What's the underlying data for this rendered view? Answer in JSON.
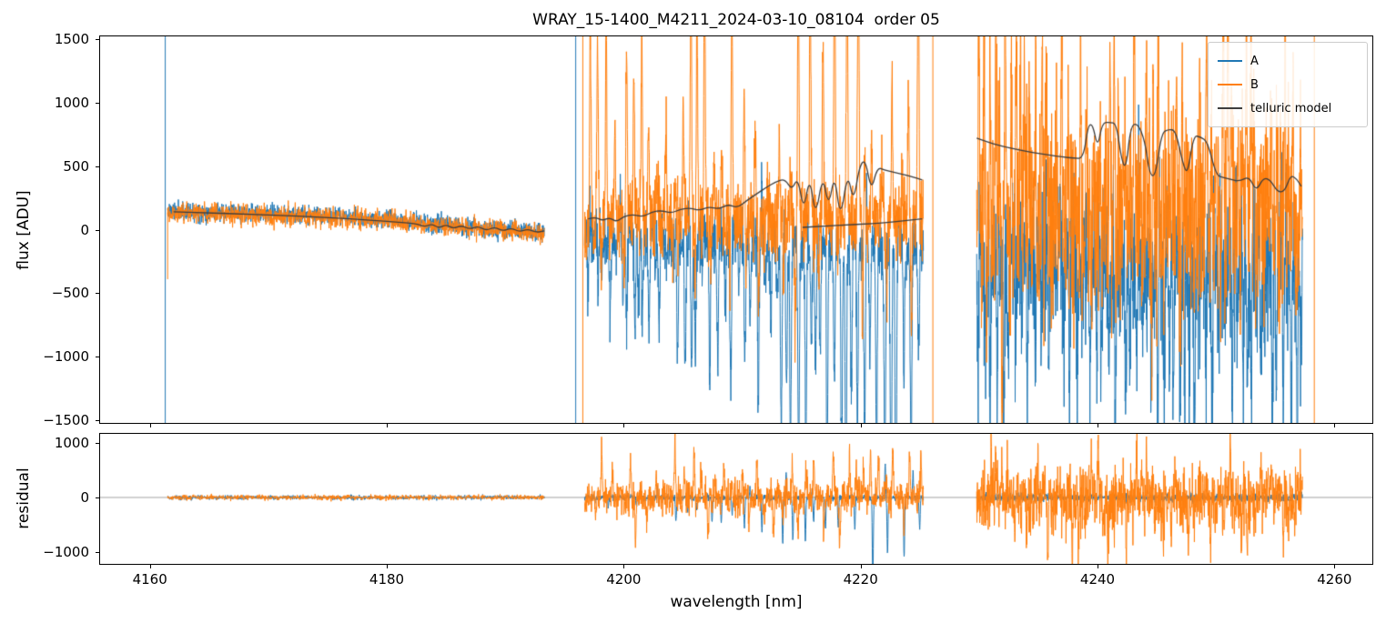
{
  "chart_data": {
    "type": "line",
    "title": "WRAY_15-1400_M4211_2024-03-10_08104  order 05",
    "xlabel": "wavelength [nm]",
    "xlim": [
      4155.8,
      4263.2
    ],
    "xticks": [
      {
        "v": 4160,
        "label": "4160"
      },
      {
        "v": 4180,
        "label": "4180"
      },
      {
        "v": 4200,
        "label": "4200"
      },
      {
        "v": 4220,
        "label": "4220"
      },
      {
        "v": 4240,
        "label": "4240"
      },
      {
        "v": 4260,
        "label": "4260"
      }
    ],
    "panels": [
      {
        "id": "flux",
        "ylabel": "flux [ADU]",
        "ylim": [
          -1520,
          1520
        ],
        "zero_line": false,
        "yticks": [
          {
            "v": 1500,
            "label": "1500"
          },
          {
            "v": 1000,
            "label": "1000"
          },
          {
            "v": 500,
            "label": "500"
          },
          {
            "v": 0,
            "label": "0"
          },
          {
            "v": -500,
            "label": "−500"
          },
          {
            "v": -1000,
            "label": "−1000"
          },
          {
            "v": -1500,
            "label": "−1500"
          }
        ]
      },
      {
        "id": "residual",
        "ylabel": "residual",
        "ylim": [
          -1216,
          1166
        ],
        "zero_line": true,
        "yticks": [
          {
            "v": 1000,
            "label": "1000"
          },
          {
            "v": 0,
            "label": "0"
          },
          {
            "v": -1000,
            "label": "−1000"
          }
        ]
      }
    ],
    "series": [
      {
        "name": "A",
        "color": "#1f77b4"
      },
      {
        "name": "B",
        "color": "#ff7f0e"
      },
      {
        "name": "telluric model",
        "color": "#3d3d3d"
      }
    ],
    "legend_position": "upper right",
    "zero_line_color": "#8a8a8a",
    "noise_traces": [
      {
        "panel": "flux",
        "series": "A",
        "seed": 11,
        "x0": 4161.5,
        "x1": 4193.3,
        "n": 1300,
        "std": 36,
        "base": [
          [
            4161.5,
            150
          ],
          [
            4172,
            118
          ],
          [
            4180,
            82
          ],
          [
            4184,
            44
          ],
          [
            4187,
            14
          ],
          [
            4190,
            -6
          ],
          [
            4193.3,
            -22
          ]
        ],
        "spikes": []
      },
      {
        "panel": "flux",
        "series": "B",
        "seed": 12,
        "x0": 4161.5,
        "x1": 4193.3,
        "n": 1300,
        "std": 40,
        "base": [
          [
            4161.5,
            142
          ],
          [
            4172,
            112
          ],
          [
            4180,
            78
          ],
          [
            4184,
            40
          ],
          [
            4187,
            10
          ],
          [
            4190,
            -10
          ],
          [
            4193.3,
            -26
          ]
        ],
        "spikes": []
      },
      {
        "panel": "flux",
        "series": "A",
        "seed": 21,
        "x0": 4196.7,
        "x1": 4225.3,
        "n": 1500,
        "std": 120,
        "base": [
          [
            4196.7,
            -30
          ],
          [
            4205,
            -55
          ],
          [
            4215,
            -85
          ],
          [
            4225.3,
            -130
          ]
        ],
        "spikes": [
          {
            "spacing": 0.5,
            "amp": [
              150,
              1300
            ],
            "sign": -1,
            "width": 0.09,
            "grow": [
              0.4,
              2.0
            ]
          },
          {
            "spacing": 2.8,
            "amp": [
              150,
              800
            ],
            "sign": 1,
            "width": 0.05,
            "grow": [
              1,
              1
            ]
          }
        ]
      },
      {
        "panel": "flux",
        "series": "B",
        "seed": 22,
        "x0": 4196.7,
        "x1": 4225.3,
        "n": 1500,
        "std": 150,
        "base": [
          [
            4196.7,
            40
          ],
          [
            4205,
            60
          ],
          [
            4215,
            70
          ],
          [
            4225.3,
            90
          ]
        ],
        "spikes": [
          {
            "spacing": 0.8,
            "amp": [
              250,
              2200
            ],
            "sign": 1,
            "width": 0.08,
            "grow": [
              0.9,
              1.2
            ]
          },
          {
            "spacing": 1.6,
            "amp": [
              100,
              900
            ],
            "sign": -1,
            "width": 0.06,
            "grow": [
              0.5,
              1.5
            ]
          }
        ]
      },
      {
        "panel": "flux",
        "series": "A",
        "seed": 31,
        "x0": 4229.8,
        "x1": 4257.3,
        "n": 1500,
        "std": 290,
        "base": [
          [
            4229.8,
            -220
          ],
          [
            4257.3,
            -280
          ]
        ],
        "spikes": [
          {
            "spacing": 0.5,
            "amp": [
              250,
              1500
            ],
            "sign": -1,
            "width": 0.07,
            "grow": [
              1,
              1
            ]
          },
          {
            "spacing": 2.0,
            "amp": [
              150,
              900
            ],
            "sign": 1,
            "width": 0.05,
            "grow": [
              1,
              1
            ]
          }
        ]
      },
      {
        "panel": "flux",
        "series": "B",
        "seed": 32,
        "x0": 4229.8,
        "x1": 4257.3,
        "n": 1500,
        "std": 370,
        "base": [
          [
            4229.8,
            120
          ],
          [
            4257.3,
            60
          ]
        ],
        "spikes": [
          {
            "spacing": 0.45,
            "amp": [
              300,
              1900
            ],
            "sign": 1,
            "width": 0.07,
            "grow": [
              1,
              1
            ]
          },
          {
            "spacing": 1.1,
            "amp": [
              200,
              1300
            ],
            "sign": -1,
            "width": 0.06,
            "grow": [
              1,
              1
            ]
          }
        ]
      },
      {
        "panel": "residual",
        "series": "A",
        "seed": 41,
        "x0": 4161.5,
        "x1": 4193.3,
        "n": 1100,
        "std": 20,
        "base": [
          [
            4161.5,
            0
          ],
          [
            4193.3,
            0
          ]
        ],
        "spikes": []
      },
      {
        "panel": "residual",
        "series": "B",
        "seed": 42,
        "x0": 4161.5,
        "x1": 4193.3,
        "n": 1100,
        "std": 24,
        "base": [
          [
            4161.5,
            0
          ],
          [
            4193.3,
            0
          ]
        ],
        "spikes": []
      },
      {
        "panel": "residual",
        "series": "A",
        "seed": 43,
        "x0": 4196.7,
        "x1": 4225.3,
        "n": 1300,
        "std": 28,
        "base": [
          [
            4196.7,
            0
          ],
          [
            4225.3,
            -5
          ]
        ],
        "spikes": [
          {
            "spacing": 1.1,
            "amp": [
              60,
              1050
            ],
            "sign": -1,
            "width": 0.06,
            "grow": [
              0.05,
              1.9
            ]
          },
          {
            "spacing": 2.6,
            "amp": [
              40,
              550
            ],
            "sign": 1,
            "width": 0.05,
            "grow": [
              0.05,
              1.7
            ]
          }
        ]
      },
      {
        "panel": "residual",
        "series": "B",
        "seed": 44,
        "x0": 4196.7,
        "x1": 4225.3,
        "n": 1300,
        "std": 150,
        "base": [
          [
            4196.7,
            0
          ],
          [
            4225.3,
            0
          ]
        ],
        "spikes": [
          {
            "spacing": 0.7,
            "amp": [
              150,
              950
            ],
            "sign": 0,
            "width": 0.07,
            "grow": [
              1,
              1
            ]
          }
        ]
      },
      {
        "panel": "residual",
        "series": "A",
        "seed": 45,
        "x0": 4229.8,
        "x1": 4257.3,
        "n": 1300,
        "std": 38,
        "base": [
          [
            4229.8,
            0
          ],
          [
            4257.3,
            0
          ]
        ],
        "spikes": []
      },
      {
        "panel": "residual",
        "series": "B",
        "seed": 46,
        "x0": 4229.8,
        "x1": 4257.3,
        "n": 1300,
        "std": 300,
        "base": [
          [
            4229.8,
            0
          ],
          [
            4257.3,
            0
          ]
        ],
        "spikes": [
          {
            "spacing": 0.5,
            "amp": [
              200,
              1000
            ],
            "sign": 0,
            "width": 0.06,
            "grow": [
              1,
              1
            ]
          }
        ]
      }
    ],
    "model_curves": [
      {
        "panel": "flux",
        "points": [
          [
            4162.0,
            140
          ],
          [
            4165,
            132
          ],
          [
            4168,
            122
          ],
          [
            4171,
            112
          ],
          [
            4174,
            100
          ],
          [
            4177,
            85
          ],
          [
            4179,
            72
          ],
          [
            4181,
            58
          ],
          [
            4182.5,
            48
          ],
          [
            4183.2,
            22
          ],
          [
            4183.8,
            46
          ],
          [
            4184.4,
            12
          ],
          [
            4185.0,
            40
          ],
          [
            4185.6,
            8
          ],
          [
            4186.3,
            34
          ],
          [
            4187.0,
            2
          ],
          [
            4187.7,
            28
          ],
          [
            4188.4,
            -8
          ],
          [
            4189.1,
            22
          ],
          [
            4189.8,
            -12
          ],
          [
            4190.5,
            14
          ],
          [
            4191.2,
            -18
          ],
          [
            4191.9,
            6
          ],
          [
            4192.6,
            -22
          ],
          [
            4193.3,
            -10
          ]
        ]
      },
      {
        "panel": "flux",
        "points": [
          [
            4197.0,
            85
          ],
          [
            4197.6,
            100
          ],
          [
            4198.2,
            70
          ],
          [
            4198.8,
            95
          ],
          [
            4199.4,
            60
          ],
          [
            4200.0,
            105
          ],
          [
            4200.8,
            120
          ],
          [
            4201.6,
            100
          ],
          [
            4202.4,
            140
          ],
          [
            4203.2,
            150
          ],
          [
            4204.0,
            130
          ],
          [
            4204.8,
            160
          ],
          [
            4205.6,
            170
          ],
          [
            4206.4,
            150
          ],
          [
            4207.2,
            180
          ],
          [
            4208.0,
            160
          ],
          [
            4208.8,
            200
          ],
          [
            4209.6,
            170
          ],
          [
            4210.4,
            230
          ],
          [
            4211.2,
            280
          ],
          [
            4212.0,
            330
          ],
          [
            4212.8,
            375
          ],
          [
            4213.6,
            400
          ],
          [
            4214.2,
            310
          ],
          [
            4214.7,
            415
          ],
          [
            4215.2,
            140
          ],
          [
            4215.7,
            425
          ],
          [
            4216.2,
            90
          ],
          [
            4216.8,
            435
          ],
          [
            4217.3,
            170
          ],
          [
            4217.8,
            445
          ],
          [
            4218.3,
            70
          ],
          [
            4218.9,
            455
          ],
          [
            4219.4,
            210
          ],
          [
            4219.9,
            500
          ],
          [
            4220.4,
            555
          ],
          [
            4220.9,
            300
          ],
          [
            4221.4,
            490
          ],
          [
            4222.0,
            470
          ],
          [
            4222.8,
            450
          ],
          [
            4223.6,
            435
          ],
          [
            4224.4,
            415
          ],
          [
            4225.2,
            390
          ]
        ]
      },
      {
        "panel": "flux",
        "points": [
          [
            4215.1,
            18
          ],
          [
            4217,
            28
          ],
          [
            4219,
            38
          ],
          [
            4221,
            48
          ],
          [
            4223,
            62
          ],
          [
            4225.2,
            85
          ]
        ]
      },
      {
        "panel": "flux",
        "points": [
          [
            4229.8,
            720
          ],
          [
            4231,
            680
          ],
          [
            4232,
            655
          ],
          [
            4233,
            635
          ],
          [
            4234,
            615
          ],
          [
            4235,
            600
          ],
          [
            4236,
            585
          ],
          [
            4237,
            572
          ],
          [
            4238,
            562
          ],
          [
            4238.8,
            560
          ],
          [
            4239.2,
            820
          ],
          [
            4239.6,
            830
          ],
          [
            4240.0,
            640
          ],
          [
            4240.4,
            840
          ],
          [
            4241.0,
            845
          ],
          [
            4241.6,
            835
          ],
          [
            4242.0,
            560
          ],
          [
            4242.4,
            470
          ],
          [
            4242.8,
            820
          ],
          [
            4243.4,
            835
          ],
          [
            4244.0,
            700
          ],
          [
            4244.4,
            430
          ],
          [
            4244.9,
            420
          ],
          [
            4245.4,
            760
          ],
          [
            4246.0,
            790
          ],
          [
            4246.6,
            780
          ],
          [
            4247.2,
            520
          ],
          [
            4247.6,
            430
          ],
          [
            4248.1,
            740
          ],
          [
            4248.7,
            730
          ],
          [
            4249.3,
            690
          ],
          [
            4250.0,
            430
          ],
          [
            4250.6,
            410
          ],
          [
            4251.2,
            395
          ],
          [
            4252.0,
            380
          ],
          [
            4252.8,
            420
          ],
          [
            4253.4,
            300
          ],
          [
            4254.0,
            410
          ],
          [
            4254.6,
            390
          ],
          [
            4255.2,
            295
          ],
          [
            4255.8,
            300
          ],
          [
            4256.3,
            430
          ],
          [
            4256.8,
            400
          ],
          [
            4257.2,
            340
          ]
        ]
      }
    ],
    "vlines": [
      {
        "panel": "flux",
        "series": "A",
        "x": 4161.3,
        "y0": -1520,
        "y1": 1520
      },
      {
        "panel": "flux",
        "series": "B",
        "x": 4161.5,
        "y0": -390,
        "y1": 170
      },
      {
        "panel": "flux",
        "series": "A",
        "x": 4195.95,
        "y0": -1520,
        "y1": 1520
      },
      {
        "panel": "flux",
        "series": "B",
        "x": 4196.55,
        "y0": -1520,
        "y1": 1520
      },
      {
        "panel": "flux",
        "series": "B",
        "x": 4226.1,
        "y0": -1520,
        "y1": 1520
      },
      {
        "panel": "flux",
        "series": "B",
        "x": 4258.3,
        "y0": -1520,
        "y1": 1520
      }
    ]
  }
}
